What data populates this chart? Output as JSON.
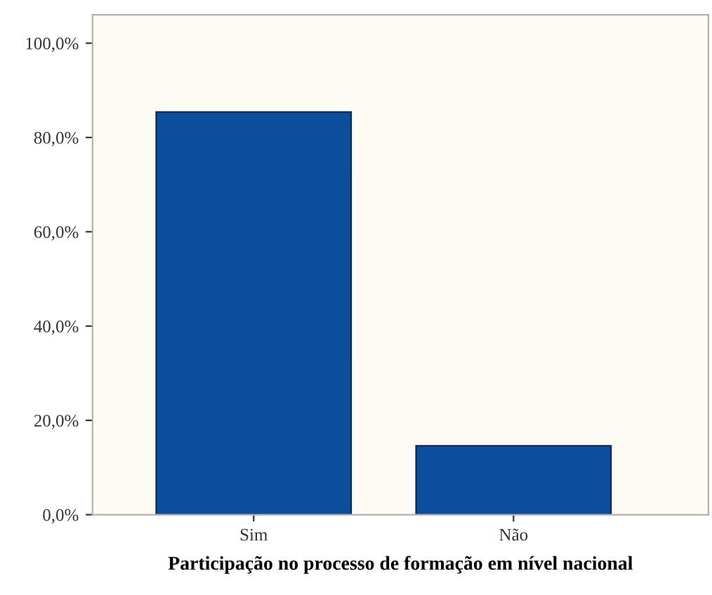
{
  "chart_data": {
    "type": "bar",
    "xlabel": "Participação no processo de formação em nível nacional",
    "categories": [
      "Sim",
      "Não"
    ],
    "values": [
      85.4,
      14.6
    ],
    "color": "#0b4f9c",
    "ylim": [
      0,
      106
    ],
    "yticks": [
      {
        "value": 0,
        "label": "0,0%"
      },
      {
        "value": 20,
        "label": "20,0%"
      },
      {
        "value": 40,
        "label": "40,0%"
      },
      {
        "value": 60,
        "label": "60,0%"
      },
      {
        "value": 80,
        "label": "80,0%"
      },
      {
        "value": 100,
        "label": "100,0%"
      }
    ],
    "grid": false
  }
}
